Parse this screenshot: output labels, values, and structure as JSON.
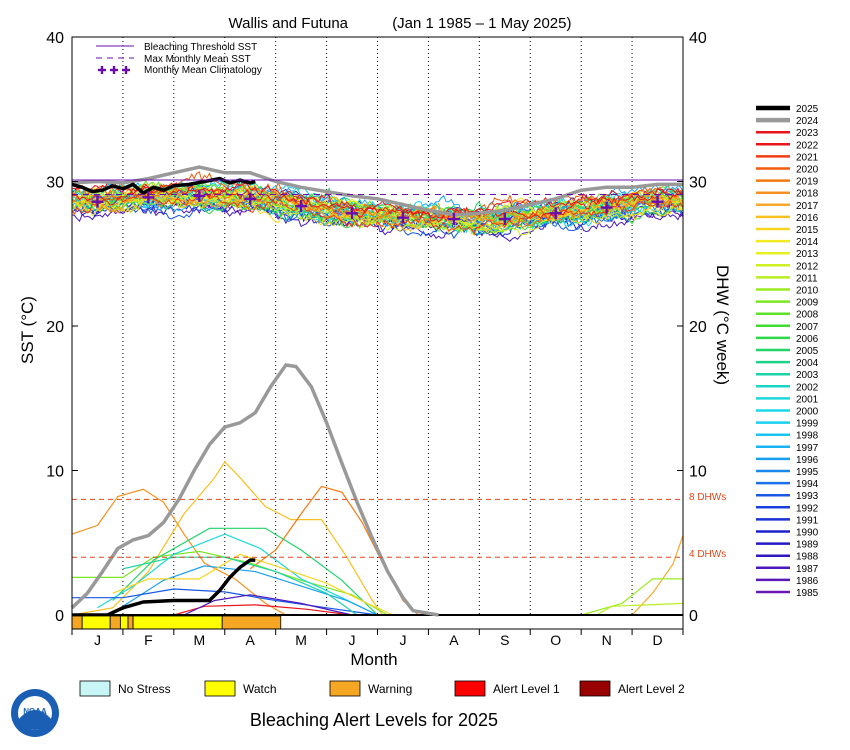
{
  "chart_data": {
    "type": "line",
    "title": "Wallis and Futuna",
    "subtitle": "(Jan 1 1985 – 1 May 2025)",
    "xlabel": "Month",
    "ylabel": "SST (°C)",
    "y2label": "DHW (°C week)",
    "ylim": [
      0,
      40
    ],
    "y_ticks": [
      "0",
      "10",
      "20",
      "30",
      "40"
    ],
    "months": [
      "J",
      "F",
      "M",
      "A",
      "M",
      "J",
      "J",
      "A",
      "S",
      "O",
      "N",
      "D"
    ],
    "legend_top": [
      {
        "label": "Bleaching Threshold SST",
        "color": "#6a0dad"
      },
      {
        "label": "Max Monthly Mean SST",
        "color": "#6a0dad"
      },
      {
        "label": "Monthly Mean Climatology",
        "color": "#6a0dad"
      }
    ],
    "bleaching_threshold_sst": 30.1,
    "max_monthly_mean_sst": 29.1,
    "monthly_mean_climatology": [
      {
        "x": 0.5,
        "y": 28.6
      },
      {
        "x": 1.5,
        "y": 28.9
      },
      {
        "x": 2.5,
        "y": 29.0
      },
      {
        "x": 3.5,
        "y": 28.8
      },
      {
        "x": 4.5,
        "y": 28.3
      },
      {
        "x": 5.5,
        "y": 27.8
      },
      {
        "x": 6.5,
        "y": 27.5
      },
      {
        "x": 7.5,
        "y": 27.4
      },
      {
        "x": 8.5,
        "y": 27.4
      },
      {
        "x": 9.5,
        "y": 27.8
      },
      {
        "x": 10.5,
        "y": 28.2
      },
      {
        "x": 11.5,
        "y": 28.6
      }
    ],
    "dhw_lines": [
      {
        "label": "8 DHWs",
        "value": 8
      },
      {
        "label": "4 DHWs",
        "value": 4
      }
    ],
    "years": [
      "2025",
      "2024",
      "2023",
      "2022",
      "2021",
      "2020",
      "2019",
      "2018",
      "2017",
      "2016",
      "2015",
      "2014",
      "2013",
      "2012",
      "2011",
      "2010",
      "2009",
      "2008",
      "2007",
      "2006",
      "2005",
      "2004",
      "2003",
      "2002",
      "2001",
      "2000",
      "1999",
      "1998",
      "1997",
      "1996",
      "1995",
      "1994",
      "1993",
      "1992",
      "1991",
      "1990",
      "1989",
      "1988",
      "1987",
      "1986",
      "1985"
    ],
    "year_colors": [
      "#000000",
      "#999999",
      "#e8141a",
      "#e8141a",
      "#f03c10",
      "#f25c0c",
      "#f47a10",
      "#f59020",
      "#f7a828",
      "#f8c020",
      "#f8d620",
      "#f4ea20",
      "#e8f020",
      "#d0f020",
      "#b8ee20",
      "#9aec20",
      "#7ae820",
      "#5ee228",
      "#40dc30",
      "#2ad848",
      "#20d468",
      "#1cd288",
      "#1ad4a8",
      "#1ad6c4",
      "#1ad8dc",
      "#1ad8e8",
      "#1ad0f0",
      "#1ac4f2",
      "#18b4f2",
      "#18a0f0",
      "#1888ee",
      "#1870ea",
      "#1858e4",
      "#1840dc",
      "#1830d4",
      "#1a22cc",
      "#2418c4",
      "#3018c0",
      "#4a18bc",
      "#5a18b8",
      "#6a18b4"
    ],
    "sst_2025": [
      {
        "x": 0.0,
        "y": 29.8
      },
      {
        "x": 0.2,
        "y": 29.6
      },
      {
        "x": 0.4,
        "y": 29.3
      },
      {
        "x": 0.6,
        "y": 29.4
      },
      {
        "x": 0.8,
        "y": 29.7
      },
      {
        "x": 1.0,
        "y": 29.5
      },
      {
        "x": 1.2,
        "y": 29.8
      },
      {
        "x": 1.4,
        "y": 29.2
      },
      {
        "x": 1.6,
        "y": 29.6
      },
      {
        "x": 1.8,
        "y": 29.4
      },
      {
        "x": 2.0,
        "y": 29.7
      },
      {
        "x": 2.3,
        "y": 29.8
      },
      {
        "x": 2.6,
        "y": 30.0
      },
      {
        "x": 2.9,
        "y": 30.2
      },
      {
        "x": 3.1,
        "y": 29.9
      },
      {
        "x": 3.3,
        "y": 30.1
      },
      {
        "x": 3.5,
        "y": 29.9
      },
      {
        "x": 3.6,
        "y": 30.0
      }
    ],
    "sst_2024": [
      {
        "x": 0.0,
        "y": 29.9
      },
      {
        "x": 0.5,
        "y": 30.0
      },
      {
        "x": 1.0,
        "y": 29.9
      },
      {
        "x": 1.5,
        "y": 30.2
      },
      {
        "x": 2.0,
        "y": 30.6
      },
      {
        "x": 2.5,
        "y": 31.0
      },
      {
        "x": 3.0,
        "y": 30.6
      },
      {
        "x": 3.5,
        "y": 30.6
      },
      {
        "x": 4.0,
        "y": 30.0
      },
      {
        "x": 4.5,
        "y": 29.6
      },
      {
        "x": 5.0,
        "y": 29.3
      },
      {
        "x": 5.5,
        "y": 29.0
      },
      {
        "x": 6.0,
        "y": 28.8
      },
      {
        "x": 6.5,
        "y": 28.4
      },
      {
        "x": 7.0,
        "y": 28.0
      },
      {
        "x": 7.5,
        "y": 27.7
      },
      {
        "x": 8.0,
        "y": 27.8
      },
      {
        "x": 8.5,
        "y": 28.0
      },
      {
        "x": 9.0,
        "y": 28.4
      },
      {
        "x": 9.5,
        "y": 28.8
      },
      {
        "x": 10.0,
        "y": 29.4
      },
      {
        "x": 10.5,
        "y": 29.6
      },
      {
        "x": 11.0,
        "y": 29.6
      },
      {
        "x": 11.5,
        "y": 29.8
      },
      {
        "x": 12.0,
        "y": 29.8
      }
    ],
    "dhw_2025": [
      {
        "x": 0.0,
        "y": 0
      },
      {
        "x": 0.7,
        "y": 0
      },
      {
        "x": 1.0,
        "y": 0.5
      },
      {
        "x": 1.4,
        "y": 0.9
      },
      {
        "x": 2.0,
        "y": 1.0
      },
      {
        "x": 2.7,
        "y": 1.0
      },
      {
        "x": 2.9,
        "y": 1.7
      },
      {
        "x": 3.1,
        "y": 2.6
      },
      {
        "x": 3.3,
        "y": 3.3
      },
      {
        "x": 3.5,
        "y": 3.8
      },
      {
        "x": 3.6,
        "y": 3.8
      }
    ],
    "dhw_2024": [
      {
        "x": 0.0,
        "y": 0.5
      },
      {
        "x": 0.3,
        "y": 1.5
      },
      {
        "x": 0.6,
        "y": 3.0
      },
      {
        "x": 0.9,
        "y": 4.6
      },
      {
        "x": 1.2,
        "y": 5.2
      },
      {
        "x": 1.5,
        "y": 5.5
      },
      {
        "x": 1.8,
        "y": 6.4
      },
      {
        "x": 2.1,
        "y": 8.0
      },
      {
        "x": 2.4,
        "y": 10.0
      },
      {
        "x": 2.7,
        "y": 11.8
      },
      {
        "x": 3.0,
        "y": 13.0
      },
      {
        "x": 3.3,
        "y": 13.3
      },
      {
        "x": 3.6,
        "y": 14.0
      },
      {
        "x": 3.9,
        "y": 15.8
      },
      {
        "x": 4.2,
        "y": 17.3
      },
      {
        "x": 4.4,
        "y": 17.2
      },
      {
        "x": 4.7,
        "y": 15.8
      },
      {
        "x": 5.0,
        "y": 13.3
      },
      {
        "x": 5.3,
        "y": 10.5
      },
      {
        "x": 5.6,
        "y": 7.8
      },
      {
        "x": 5.9,
        "y": 5.3
      },
      {
        "x": 6.2,
        "y": 3.0
      },
      {
        "x": 6.5,
        "y": 1.2
      },
      {
        "x": 6.7,
        "y": 0.3
      },
      {
        "x": 7.2,
        "y": 0
      }
    ],
    "dhw_other": [
      {
        "year": "2016",
        "points": [
          {
            "x": 0,
            "y": 0
          },
          {
            "x": 0.8,
            "y": 0.5
          },
          {
            "x": 1.5,
            "y": 3.0
          },
          {
            "x": 2.2,
            "y": 7.0
          },
          {
            "x": 2.8,
            "y": 9.5
          },
          {
            "x": 3.0,
            "y": 10.6
          },
          {
            "x": 3.3,
            "y": 9.5
          },
          {
            "x": 3.8,
            "y": 7.5
          },
          {
            "x": 4.3,
            "y": 6.6
          },
          {
            "x": 4.9,
            "y": 6.6
          },
          {
            "x": 5.4,
            "y": 4.0
          },
          {
            "x": 5.9,
            "y": 1.0
          },
          {
            "x": 6.1,
            "y": 0
          }
        ]
      },
      {
        "year": "2018",
        "points": [
          {
            "x": 0,
            "y": 5.6
          },
          {
            "x": 0.5,
            "y": 6.2
          },
          {
            "x": 0.9,
            "y": 8.2
          },
          {
            "x": 1.4,
            "y": 8.7
          },
          {
            "x": 1.8,
            "y": 7.8
          },
          {
            "x": 2.2,
            "y": 5.6
          },
          {
            "x": 2.6,
            "y": 3.6
          },
          {
            "x": 3.2,
            "y": 2.5
          },
          {
            "x": 3.8,
            "y": 0.8
          },
          {
            "x": 4.2,
            "y": 0
          }
        ]
      },
      {
        "year": "2019",
        "points": [
          {
            "x": 3.5,
            "y": 3.2
          },
          {
            "x": 4.0,
            "y": 4.5
          },
          {
            "x": 4.5,
            "y": 7.0
          },
          {
            "x": 4.9,
            "y": 8.9
          },
          {
            "x": 5.3,
            "y": 8.5
          },
          {
            "x": 5.7,
            "y": 6.4
          },
          {
            "x": 6.1,
            "y": 3.6
          },
          {
            "x": 6.5,
            "y": 1.0
          },
          {
            "x": 6.8,
            "y": 0
          }
        ]
      },
      {
        "year": "2017",
        "points": [
          {
            "x": 0,
            "y": 0
          },
          {
            "x": 11.0,
            "y": 0
          },
          {
            "x": 11.4,
            "y": 1.5
          },
          {
            "x": 11.8,
            "y": 3.5
          },
          {
            "x": 12.0,
            "y": 5.5
          }
        ]
      },
      {
        "year": "2009",
        "points": [
          {
            "x": 0,
            "y": 2.6
          },
          {
            "x": 1.0,
            "y": 2.6
          },
          {
            "x": 1.6,
            "y": 4.0
          },
          {
            "x": 2.5,
            "y": 4.4
          },
          {
            "x": 3.5,
            "y": 3.6
          },
          {
            "x": 4.5,
            "y": 2.4
          },
          {
            "x": 5.5,
            "y": 1.4
          },
          {
            "x": 6.2,
            "y": 0
          }
        ]
      },
      {
        "year": "2005",
        "points": [
          {
            "x": 0.8,
            "y": 1.0
          },
          {
            "x": 1.6,
            "y": 3.8
          },
          {
            "x": 2.7,
            "y": 6.0
          },
          {
            "x": 3.8,
            "y": 6.0
          },
          {
            "x": 4.5,
            "y": 4.5
          },
          {
            "x": 5.3,
            "y": 2.4
          },
          {
            "x": 6.0,
            "y": 0
          }
        ]
      },
      {
        "year": "2001",
        "points": [
          {
            "x": 0.5,
            "y": 0.5
          },
          {
            "x": 1.2,
            "y": 2.0
          },
          {
            "x": 2.0,
            "y": 4.2
          },
          {
            "x": 3.0,
            "y": 5.6
          },
          {
            "x": 3.7,
            "y": 4.6
          },
          {
            "x": 4.5,
            "y": 2.5
          },
          {
            "x": 5.3,
            "y": 1.2
          },
          {
            "x": 6.0,
            "y": 0
          }
        ]
      },
      {
        "year": "1996",
        "points": [
          {
            "x": 1.0,
            "y": 0.6
          },
          {
            "x": 1.8,
            "y": 2.4
          },
          {
            "x": 2.6,
            "y": 3.4
          },
          {
            "x": 3.6,
            "y": 3.0
          },
          {
            "x": 4.5,
            "y": 2.0
          },
          {
            "x": 5.4,
            "y": 1.0
          },
          {
            "x": 6.0,
            "y": 0
          }
        ]
      },
      {
        "year": "2010",
        "points": [
          {
            "x": 9.5,
            "y": 0
          },
          {
            "x": 10.0,
            "y": 0
          },
          {
            "x": 10.8,
            "y": 0.8
          },
          {
            "x": 11.4,
            "y": 2.5
          },
          {
            "x": 12.0,
            "y": 2.5
          }
        ]
      },
      {
        "year": "1993",
        "points": [
          {
            "x": 0,
            "y": 1.2
          },
          {
            "x": 1.0,
            "y": 1.2
          },
          {
            "x": 2.0,
            "y": 1.8
          },
          {
            "x": 3.0,
            "y": 1.6
          },
          {
            "x": 4.0,
            "y": 1.0
          },
          {
            "x": 5.0,
            "y": 0.5
          },
          {
            "x": 6.0,
            "y": 0
          }
        ]
      },
      {
        "year": "2022",
        "points": [
          {
            "x": 2.0,
            "y": 0
          },
          {
            "x": 2.6,
            "y": 0.6
          },
          {
            "x": 3.6,
            "y": 0.7
          },
          {
            "x": 4.6,
            "y": 0.4
          },
          {
            "x": 5.5,
            "y": 0
          }
        ]
      },
      {
        "year": "1987",
        "points": [
          {
            "x": 2.2,
            "y": 0
          },
          {
            "x": 2.8,
            "y": 1.0
          },
          {
            "x": 3.5,
            "y": 1.4
          },
          {
            "x": 4.5,
            "y": 0.8
          },
          {
            "x": 5.5,
            "y": 0
          }
        ]
      },
      {
        "year": "2011",
        "points": [
          {
            "x": 10.3,
            "y": 0
          },
          {
            "x": 10.6,
            "y": 0.6
          },
          {
            "x": 12.0,
            "y": 0.8
          }
        ]
      },
      {
        "year": "2015",
        "points": [
          {
            "x": 0.8,
            "y": 1.5
          },
          {
            "x": 1.5,
            "y": 2.5
          },
          {
            "x": 2.5,
            "y": 2.5
          },
          {
            "x": 3.3,
            "y": 4.2
          },
          {
            "x": 4.0,
            "y": 3.4
          },
          {
            "x": 5.0,
            "y": 2.2
          },
          {
            "x": 5.8,
            "y": 0.8
          },
          {
            "x": 6.3,
            "y": 0
          }
        ]
      },
      {
        "year": "2003",
        "points": [
          {
            "x": 1.0,
            "y": 3.2
          },
          {
            "x": 2.0,
            "y": 4.0
          },
          {
            "x": 3.0,
            "y": 4.0
          },
          {
            "x": 4.0,
            "y": 3.0
          },
          {
            "x": 5.0,
            "y": 1.5
          },
          {
            "x": 5.6,
            "y": 0
          }
        ]
      }
    ],
    "alert_bar": [
      {
        "from": 0.0,
        "to": 0.2,
        "level": "Warning"
      },
      {
        "from": 0.2,
        "to": 0.75,
        "level": "Watch"
      },
      {
        "from": 0.75,
        "to": 0.95,
        "level": "Warning"
      },
      {
        "from": 0.95,
        "to": 1.1,
        "level": "Watch"
      },
      {
        "from": 1.1,
        "to": 1.2,
        "level": "Warning"
      },
      {
        "from": 1.2,
        "to": 2.95,
        "level": "Watch"
      },
      {
        "from": 2.95,
        "to": 4.1,
        "level": "Warning"
      }
    ]
  },
  "alert_levels": [
    {
      "label": "No Stress",
      "color": "#c8f6f6"
    },
    {
      "label": "Watch",
      "color": "#ffff00"
    },
    {
      "label": "Warning",
      "color": "#f5a623"
    },
    {
      "label": "Alert Level 1",
      "color": "#ff0000"
    },
    {
      "label": "Alert Level 2",
      "color": "#990000"
    }
  ],
  "footer_title": "Bleaching Alert Levels for 2025",
  "logo_text": "NOAA"
}
